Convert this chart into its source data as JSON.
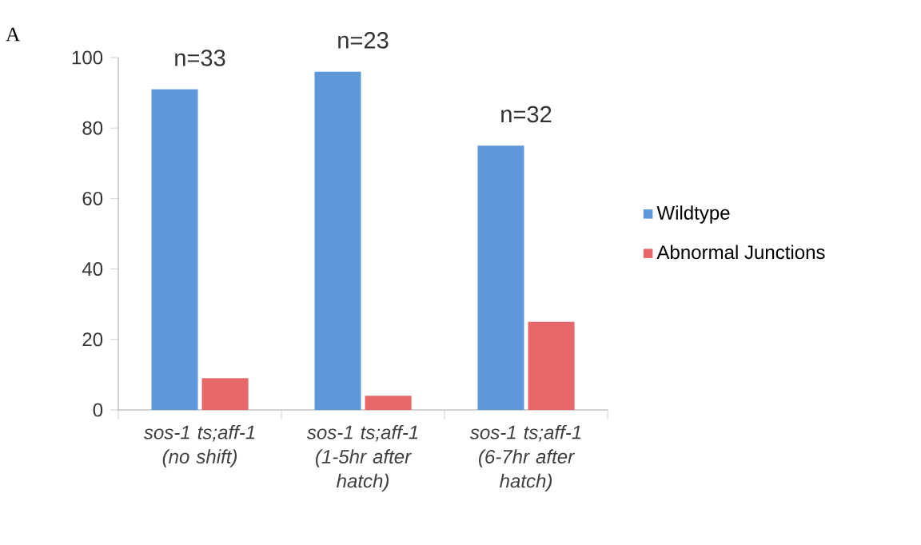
{
  "chart_data": {
    "type": "bar",
    "categories": [
      "sos-1 ts;aff-1 (no shift)",
      "sos-1 ts;aff-1 (1-5hr after hatch)",
      "sos-1 ts;aff-1 (6-7hr after hatch)"
    ],
    "series": [
      {
        "name": "Wildtype",
        "color": "#5e98d8",
        "values": [
          91,
          96,
          75
        ]
      },
      {
        "name": "Abnormal Junctions",
        "color": "#e8686a",
        "values": [
          9,
          4,
          25
        ]
      }
    ],
    "ylim": [
      0,
      100
    ],
    "yticks": [
      0,
      20,
      40,
      60,
      80,
      100
    ],
    "legend": "right",
    "annotations": [
      "A",
      "n=33",
      "n=23",
      "n=32"
    ]
  }
}
